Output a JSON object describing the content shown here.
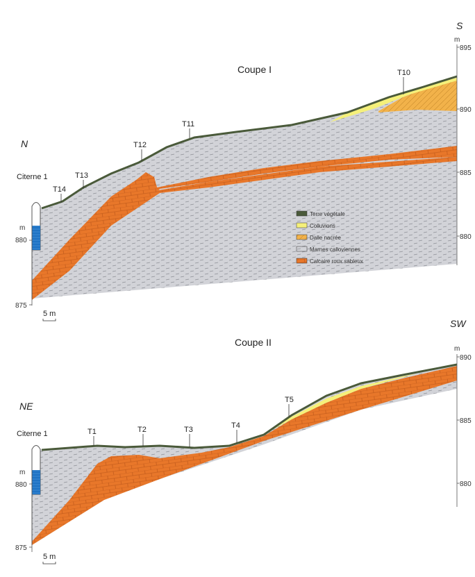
{
  "colors": {
    "terre": "#4a5a3a",
    "colluvions": "#f5f07a",
    "dalle": "#f2b24a",
    "marnes": "#d2d3d8",
    "calcaire": "#e8772a",
    "water": "#1f73c4"
  },
  "coupe1": {
    "title": "Coupe I",
    "orient_left": "N",
    "orient_right": "S",
    "citerne": "Citerne 1",
    "left_axis": {
      "unit": "m",
      "ticks": [
        "880",
        "875"
      ]
    },
    "right_axis": {
      "unit": "m",
      "ticks": [
        "895",
        "890",
        "885",
        "880"
      ]
    },
    "trenches": [
      "T14",
      "T13",
      "T12",
      "T11",
      "T10"
    ],
    "scale": "5 m"
  },
  "coupe2": {
    "title": "Coupe II",
    "orient_left": "NE",
    "orient_right": "SW",
    "citerne": "Citerne 1",
    "left_axis": {
      "unit": "m",
      "ticks": [
        "880",
        "875"
      ]
    },
    "right_axis": {
      "unit": "m",
      "ticks": [
        "890",
        "885",
        "880"
      ]
    },
    "trenches": [
      "T1",
      "T2",
      "T3",
      "T4",
      "T5"
    ],
    "scale": "5 m"
  },
  "legend": {
    "items": [
      {
        "label": "Terre végétale",
        "color": "#4a5a3a"
      },
      {
        "label": "Colluvions",
        "color": "#f5f07a"
      },
      {
        "label": "Dalle nacrée",
        "color": "#f2b24a"
      },
      {
        "label": "Marnes calloviennes",
        "color": "#d2d3d8"
      },
      {
        "label": "Calcaire roux sableux",
        "color": "#e8772a"
      }
    ]
  }
}
